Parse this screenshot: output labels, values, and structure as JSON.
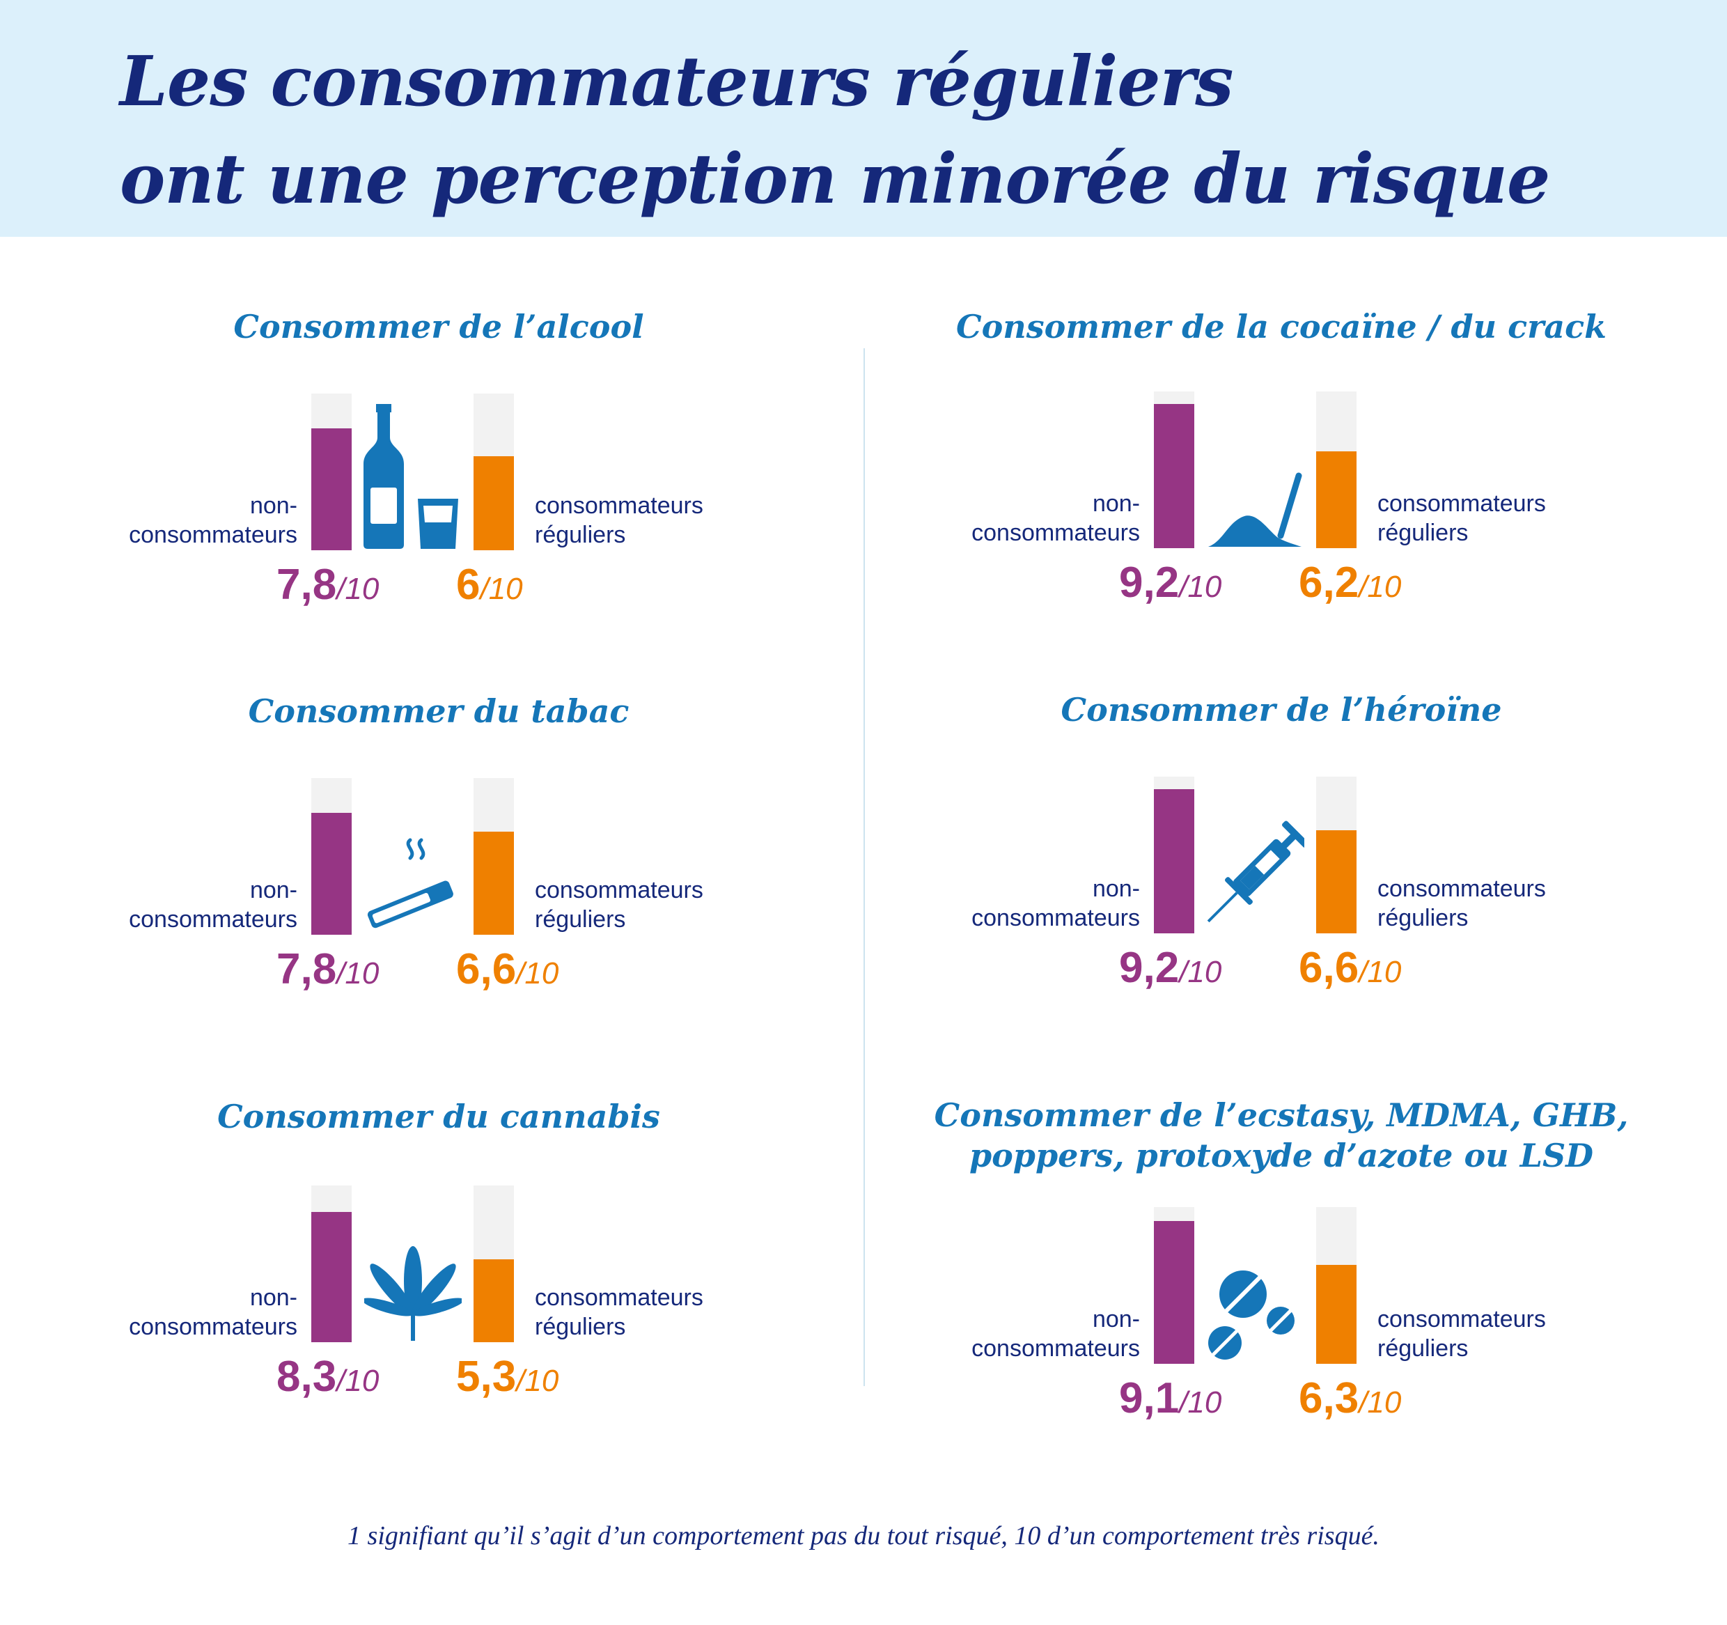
{
  "title": "Les consommateurs réguliers\nont une perception minorée du risque",
  "footnote": "1 signifiant qu’il s’agit d’un comportement pas du tout risqué, 10 d’un comportement très risqué.",
  "colors": {
    "non_consumers": "#963584",
    "regular_consumers": "#ef8000",
    "accent": "#1576b8",
    "text": "#15287a"
  },
  "chart_data": [
    {
      "type": "bar",
      "title": "Consommer de l’alcool",
      "icon": "bottle-glass-icon",
      "ylim": [
        0,
        10
      ],
      "categories": [
        "non-consommateurs",
        "consommateurs réguliers"
      ],
      "series": [
        {
          "name": "non-consommateurs",
          "value": 7.8,
          "label": "7,8",
          "unit": "/10"
        },
        {
          "name": "consommateurs réguliers",
          "value": 6.0,
          "label": "6",
          "unit": "/10"
        }
      ]
    },
    {
      "type": "bar",
      "title": "Consommer de la cocaïne / du crack",
      "icon": "powder-straw-icon",
      "ylim": [
        0,
        10
      ],
      "categories": [
        "non-consommateurs",
        "consommateurs réguliers"
      ],
      "series": [
        {
          "name": "non-consommateurs",
          "value": 9.2,
          "label": "9,2",
          "unit": "/10"
        },
        {
          "name": "consommateurs réguliers",
          "value": 6.2,
          "label": "6,2",
          "unit": "/10"
        }
      ]
    },
    {
      "type": "bar",
      "title": "Consommer du tabac",
      "icon": "cigarette-icon",
      "ylim": [
        0,
        10
      ],
      "categories": [
        "non-consommateurs",
        "consommateurs réguliers"
      ],
      "series": [
        {
          "name": "non-consommateurs",
          "value": 7.8,
          "label": "7,8",
          "unit": "/10"
        },
        {
          "name": "consommateurs réguliers",
          "value": 6.6,
          "label": "6,6",
          "unit": "/10"
        }
      ]
    },
    {
      "type": "bar",
      "title": "Consommer de l’héroïne",
      "icon": "syringe-icon",
      "ylim": [
        0,
        10
      ],
      "categories": [
        "non-consommateurs",
        "consommateurs réguliers"
      ],
      "series": [
        {
          "name": "non-consommateurs",
          "value": 9.2,
          "label": "9,2",
          "unit": "/10"
        },
        {
          "name": "consommateurs réguliers",
          "value": 6.6,
          "label": "6,6",
          "unit": "/10"
        }
      ]
    },
    {
      "type": "bar",
      "title": "Consommer du cannabis",
      "icon": "cannabis-leaf-icon",
      "ylim": [
        0,
        10
      ],
      "categories": [
        "non-consommateurs",
        "consommateurs réguliers"
      ],
      "series": [
        {
          "name": "non-consommateurs",
          "value": 8.3,
          "label": "8,3",
          "unit": "/10"
        },
        {
          "name": "consommateurs réguliers",
          "value": 5.3,
          "label": "5,3",
          "unit": "/10"
        }
      ]
    },
    {
      "type": "bar",
      "title": "Consommer de l’ecstasy, MDMA, GHB,\npoppers, protoxyde d’azote ou LSD",
      "icon": "pills-icon",
      "ylim": [
        0,
        10
      ],
      "categories": [
        "non-consommateurs",
        "consommateurs réguliers"
      ],
      "series": [
        {
          "name": "non-consommateurs",
          "value": 9.1,
          "label": "9,1",
          "unit": "/10"
        },
        {
          "name": "consommateurs réguliers",
          "value": 6.3,
          "label": "6,3",
          "unit": "/10"
        }
      ]
    }
  ]
}
